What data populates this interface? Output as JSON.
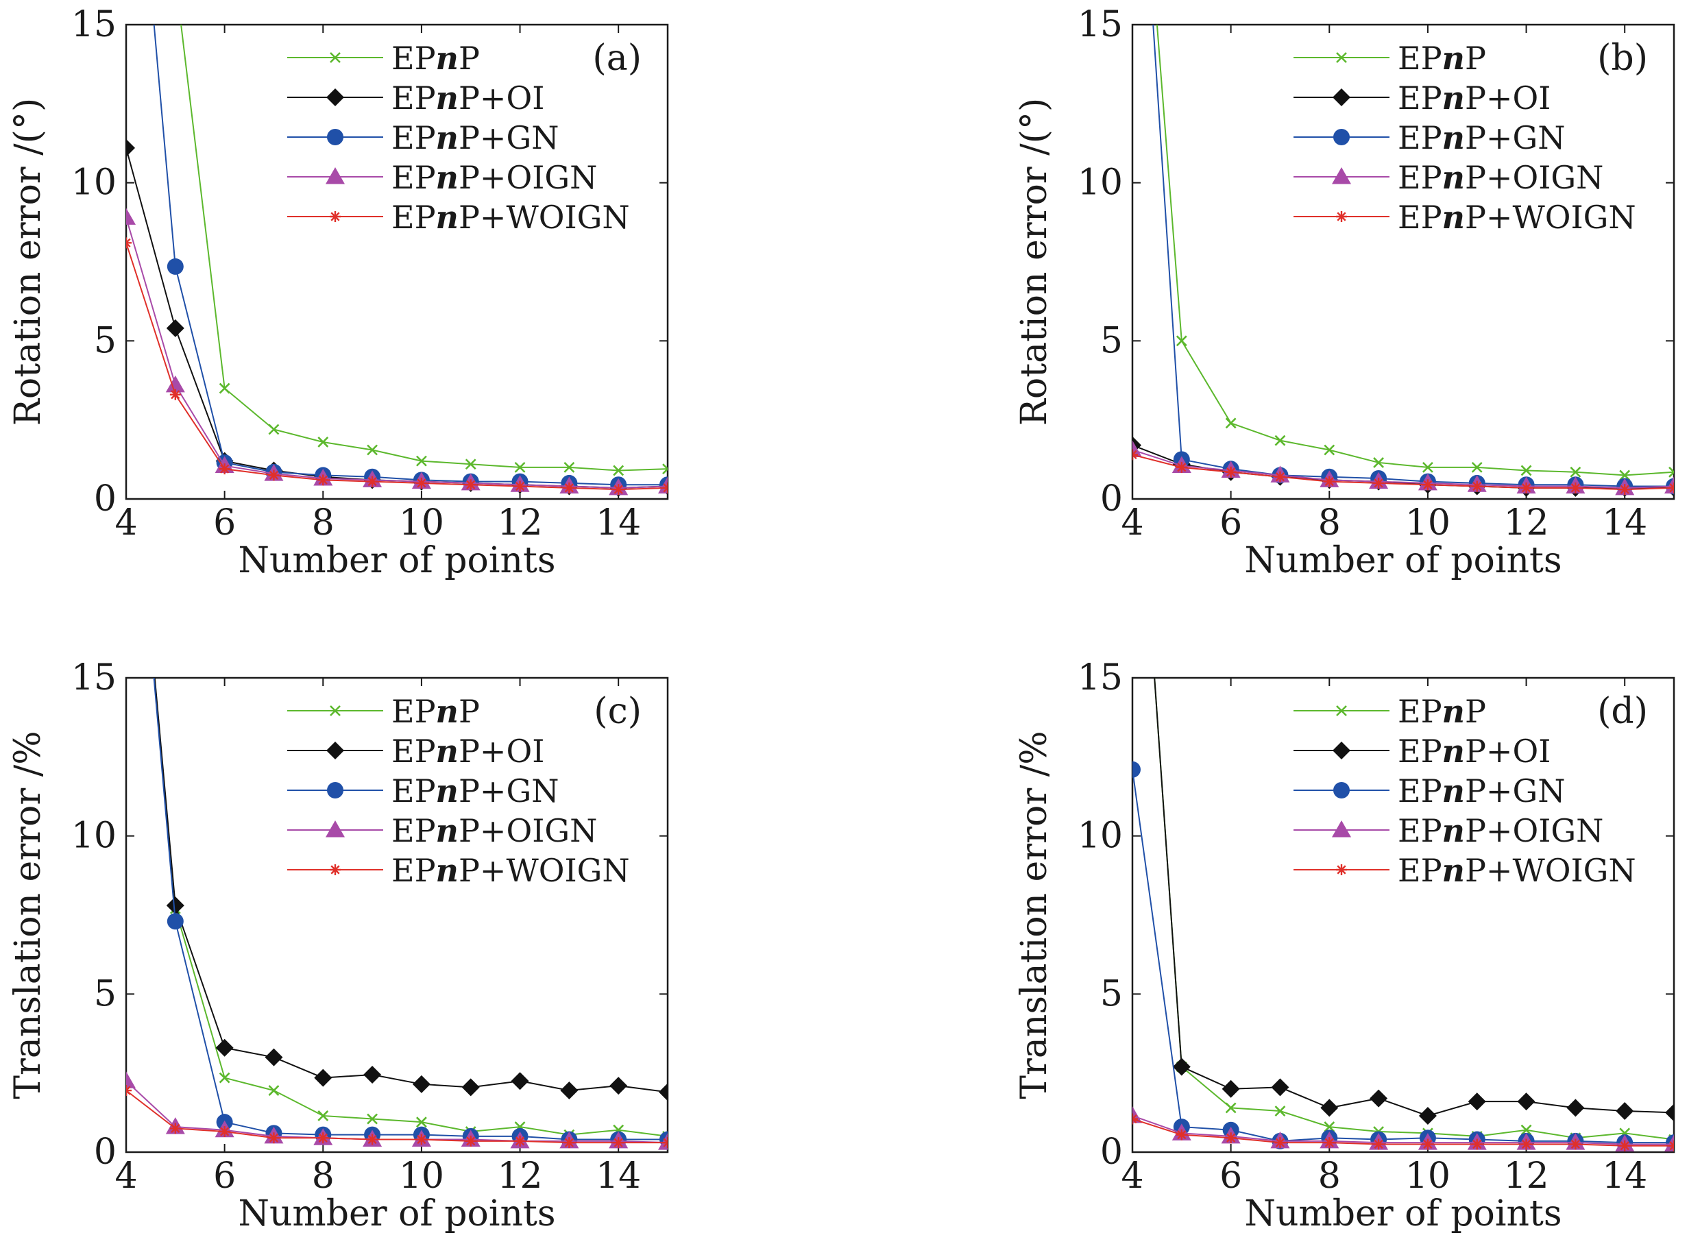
{
  "chart_data": [
    {
      "type": "line",
      "panel_label": "(a)",
      "xlabel": "Number of points",
      "ylabel": "Rotation error /(°)",
      "xlim": [
        4,
        15
      ],
      "ylim": [
        0,
        15
      ],
      "xticks": [
        4,
        6,
        8,
        10,
        12,
        14
      ],
      "yticks": [
        0,
        5,
        10,
        15
      ],
      "legend_position": "top-right",
      "x": [
        4,
        5,
        6,
        7,
        8,
        9,
        10,
        11,
        12,
        13,
        14,
        15
      ],
      "series": [
        {
          "name": "EPnP",
          "name_parts": [
            "EP",
            "n",
            "P"
          ],
          "color": "#5cb82d",
          "marker": "x",
          "values": [
            25,
            16.5,
            3.5,
            2.2,
            1.8,
            1.55,
            1.2,
            1.1,
            1.0,
            1.0,
            0.9,
            0.95
          ]
        },
        {
          "name": "EPnP+OI",
          "name_parts": [
            "EP",
            "n",
            "P+OI"
          ],
          "color": "#111111",
          "marker": "diamond",
          "values": [
            11.1,
            5.4,
            1.2,
            0.9,
            0.7,
            0.6,
            0.55,
            0.5,
            0.45,
            0.4,
            0.35,
            0.4
          ]
        },
        {
          "name": "EPnP+GN",
          "name_parts": [
            "EP",
            "n",
            "P+GN"
          ],
          "color": "#2050a8",
          "marker": "circle",
          "values": [
            25,
            7.35,
            1.15,
            0.85,
            0.75,
            0.7,
            0.6,
            0.55,
            0.55,
            0.5,
            0.45,
            0.45
          ]
        },
        {
          "name": "EPnP+OIGN",
          "name_parts": [
            "EP",
            "n",
            "P+OIGN"
          ],
          "color": "#a84aa8",
          "marker": "triangle",
          "values": [
            8.9,
            3.6,
            1.05,
            0.8,
            0.65,
            0.6,
            0.55,
            0.5,
            0.45,
            0.4,
            0.35,
            0.4
          ]
        },
        {
          "name": "EPnP+WOIGN",
          "name_parts": [
            "EP",
            "n",
            "P+WOIGN"
          ],
          "color": "#e0302a",
          "marker": "star",
          "values": [
            8.1,
            3.3,
            0.95,
            0.75,
            0.6,
            0.55,
            0.5,
            0.45,
            0.4,
            0.35,
            0.3,
            0.35
          ]
        }
      ]
    },
    {
      "type": "line",
      "panel_label": "(b)",
      "xlabel": "Number of points",
      "ylabel": "Rotation error /(°)",
      "xlim": [
        4,
        15
      ],
      "ylim": [
        0,
        15
      ],
      "xticks": [
        4,
        6,
        8,
        10,
        12,
        14
      ],
      "yticks": [
        0,
        5,
        10,
        15
      ],
      "legend_position": "top-right",
      "x": [
        4,
        5,
        6,
        7,
        8,
        9,
        10,
        11,
        12,
        13,
        14,
        15
      ],
      "series": [
        {
          "name": "EPnP",
          "name_parts": [
            "EP",
            "n",
            "P"
          ],
          "color": "#5cb82d",
          "marker": "x",
          "values": [
            25,
            5.0,
            2.4,
            1.85,
            1.55,
            1.15,
            1.0,
            1.0,
            0.9,
            0.85,
            0.75,
            0.85
          ]
        },
        {
          "name": "EPnP+OI",
          "name_parts": [
            "EP",
            "n",
            "P+OI"
          ],
          "color": "#111111",
          "marker": "diamond",
          "values": [
            1.7,
            1.1,
            0.85,
            0.7,
            0.6,
            0.55,
            0.45,
            0.4,
            0.35,
            0.35,
            0.35,
            0.35
          ]
        },
        {
          "name": "EPnP+GN",
          "name_parts": [
            "EP",
            "n",
            "P+GN"
          ],
          "color": "#2050a8",
          "marker": "circle",
          "values": [
            25,
            1.25,
            0.95,
            0.75,
            0.7,
            0.65,
            0.55,
            0.5,
            0.45,
            0.45,
            0.4,
            0.4
          ]
        },
        {
          "name": "EPnP+OIGN",
          "name_parts": [
            "EP",
            "n",
            "P+OIGN"
          ],
          "color": "#a84aa8",
          "marker": "triangle",
          "values": [
            1.55,
            1.05,
            0.9,
            0.75,
            0.6,
            0.55,
            0.5,
            0.45,
            0.4,
            0.4,
            0.35,
            0.4
          ]
        },
        {
          "name": "EPnP+WOIGN",
          "name_parts": [
            "EP",
            "n",
            "P+WOIGN"
          ],
          "color": "#e0302a",
          "marker": "star",
          "values": [
            1.4,
            1.0,
            0.85,
            0.7,
            0.55,
            0.5,
            0.45,
            0.4,
            0.35,
            0.35,
            0.3,
            0.35
          ]
        }
      ]
    },
    {
      "type": "line",
      "panel_label": "(c)",
      "xlabel": "Number of points",
      "ylabel": "Translation error /%",
      "xlim": [
        4,
        15
      ],
      "ylim": [
        0,
        15
      ],
      "xticks": [
        4,
        6,
        8,
        10,
        12,
        14
      ],
      "yticks": [
        0,
        5,
        10,
        15
      ],
      "legend_position": "top-right",
      "x": [
        4,
        5,
        6,
        7,
        8,
        9,
        10,
        11,
        12,
        13,
        14,
        15
      ],
      "series": [
        {
          "name": "EPnP",
          "name_parts": [
            "EP",
            "n",
            "P"
          ],
          "color": "#5cb82d",
          "marker": "x",
          "values": [
            25,
            7.7,
            2.35,
            1.95,
            1.15,
            1.05,
            0.95,
            0.65,
            0.8,
            0.55,
            0.7,
            0.5
          ]
        },
        {
          "name": "EPnP+OI",
          "name_parts": [
            "EP",
            "n",
            "P+OI"
          ],
          "color": "#111111",
          "marker": "diamond",
          "values": [
            25,
            7.8,
            3.3,
            3.0,
            2.35,
            2.45,
            2.15,
            2.05,
            2.25,
            1.95,
            2.1,
            1.9
          ]
        },
        {
          "name": "EPnP+GN",
          "name_parts": [
            "EP",
            "n",
            "P+GN"
          ],
          "color": "#2050a8",
          "marker": "circle",
          "values": [
            25,
            7.3,
            0.95,
            0.6,
            0.55,
            0.55,
            0.55,
            0.5,
            0.5,
            0.4,
            0.4,
            0.4
          ]
        },
        {
          "name": "EPnP+OIGN",
          "name_parts": [
            "EP",
            "n",
            "P+OIGN"
          ],
          "color": "#a84aa8",
          "marker": "triangle",
          "values": [
            2.25,
            0.8,
            0.7,
            0.5,
            0.45,
            0.4,
            0.4,
            0.4,
            0.35,
            0.35,
            0.35,
            0.3
          ]
        },
        {
          "name": "EPnP+WOIGN",
          "name_parts": [
            "EP",
            "n",
            "P+WOIGN"
          ],
          "color": "#e0302a",
          "marker": "star",
          "values": [
            1.95,
            0.75,
            0.65,
            0.45,
            0.45,
            0.4,
            0.4,
            0.35,
            0.35,
            0.3,
            0.3,
            0.3
          ]
        }
      ]
    },
    {
      "type": "line",
      "panel_label": "(d)",
      "xlabel": "Number of points",
      "ylabel": "Translation error /%",
      "xlim": [
        4,
        15
      ],
      "ylim": [
        0,
        15
      ],
      "xticks": [
        4,
        6,
        8,
        10,
        12,
        14
      ],
      "yticks": [
        0,
        5,
        10,
        15
      ],
      "legend_position": "top-right",
      "x": [
        4,
        5,
        6,
        7,
        8,
        9,
        10,
        11,
        12,
        13,
        14,
        15
      ],
      "series": [
        {
          "name": "EPnP",
          "name_parts": [
            "EP",
            "n",
            "P"
          ],
          "color": "#5cb82d",
          "marker": "x",
          "values": [
            25,
            2.7,
            1.4,
            1.3,
            0.8,
            0.65,
            0.6,
            0.5,
            0.7,
            0.45,
            0.6,
            0.4
          ]
        },
        {
          "name": "EPnP+OI",
          "name_parts": [
            "EP",
            "n",
            "P+OI"
          ],
          "color": "#111111",
          "marker": "diamond",
          "values": [
            25,
            2.7,
            2.0,
            2.05,
            1.4,
            1.7,
            1.15,
            1.6,
            1.6,
            1.4,
            1.3,
            1.25
          ]
        },
        {
          "name": "EPnP+GN",
          "name_parts": [
            "EP",
            "n",
            "P+GN"
          ],
          "color": "#2050a8",
          "marker": "circle",
          "values": [
            12.1,
            0.8,
            0.7,
            0.35,
            0.45,
            0.4,
            0.45,
            0.4,
            0.35,
            0.35,
            0.3,
            0.3
          ]
        },
        {
          "name": "EPnP+OIGN",
          "name_parts": [
            "EP",
            "n",
            "P+OIGN"
          ],
          "color": "#a84aa8",
          "marker": "triangle",
          "values": [
            1.15,
            0.6,
            0.5,
            0.35,
            0.35,
            0.3,
            0.3,
            0.3,
            0.3,
            0.3,
            0.25,
            0.25
          ]
        },
        {
          "name": "EPnP+WOIGN",
          "name_parts": [
            "EP",
            "n",
            "P+WOIGN"
          ],
          "color": "#e0302a",
          "marker": "star",
          "values": [
            1.05,
            0.55,
            0.45,
            0.3,
            0.3,
            0.25,
            0.25,
            0.25,
            0.25,
            0.25,
            0.2,
            0.2
          ]
        }
      ]
    }
  ]
}
